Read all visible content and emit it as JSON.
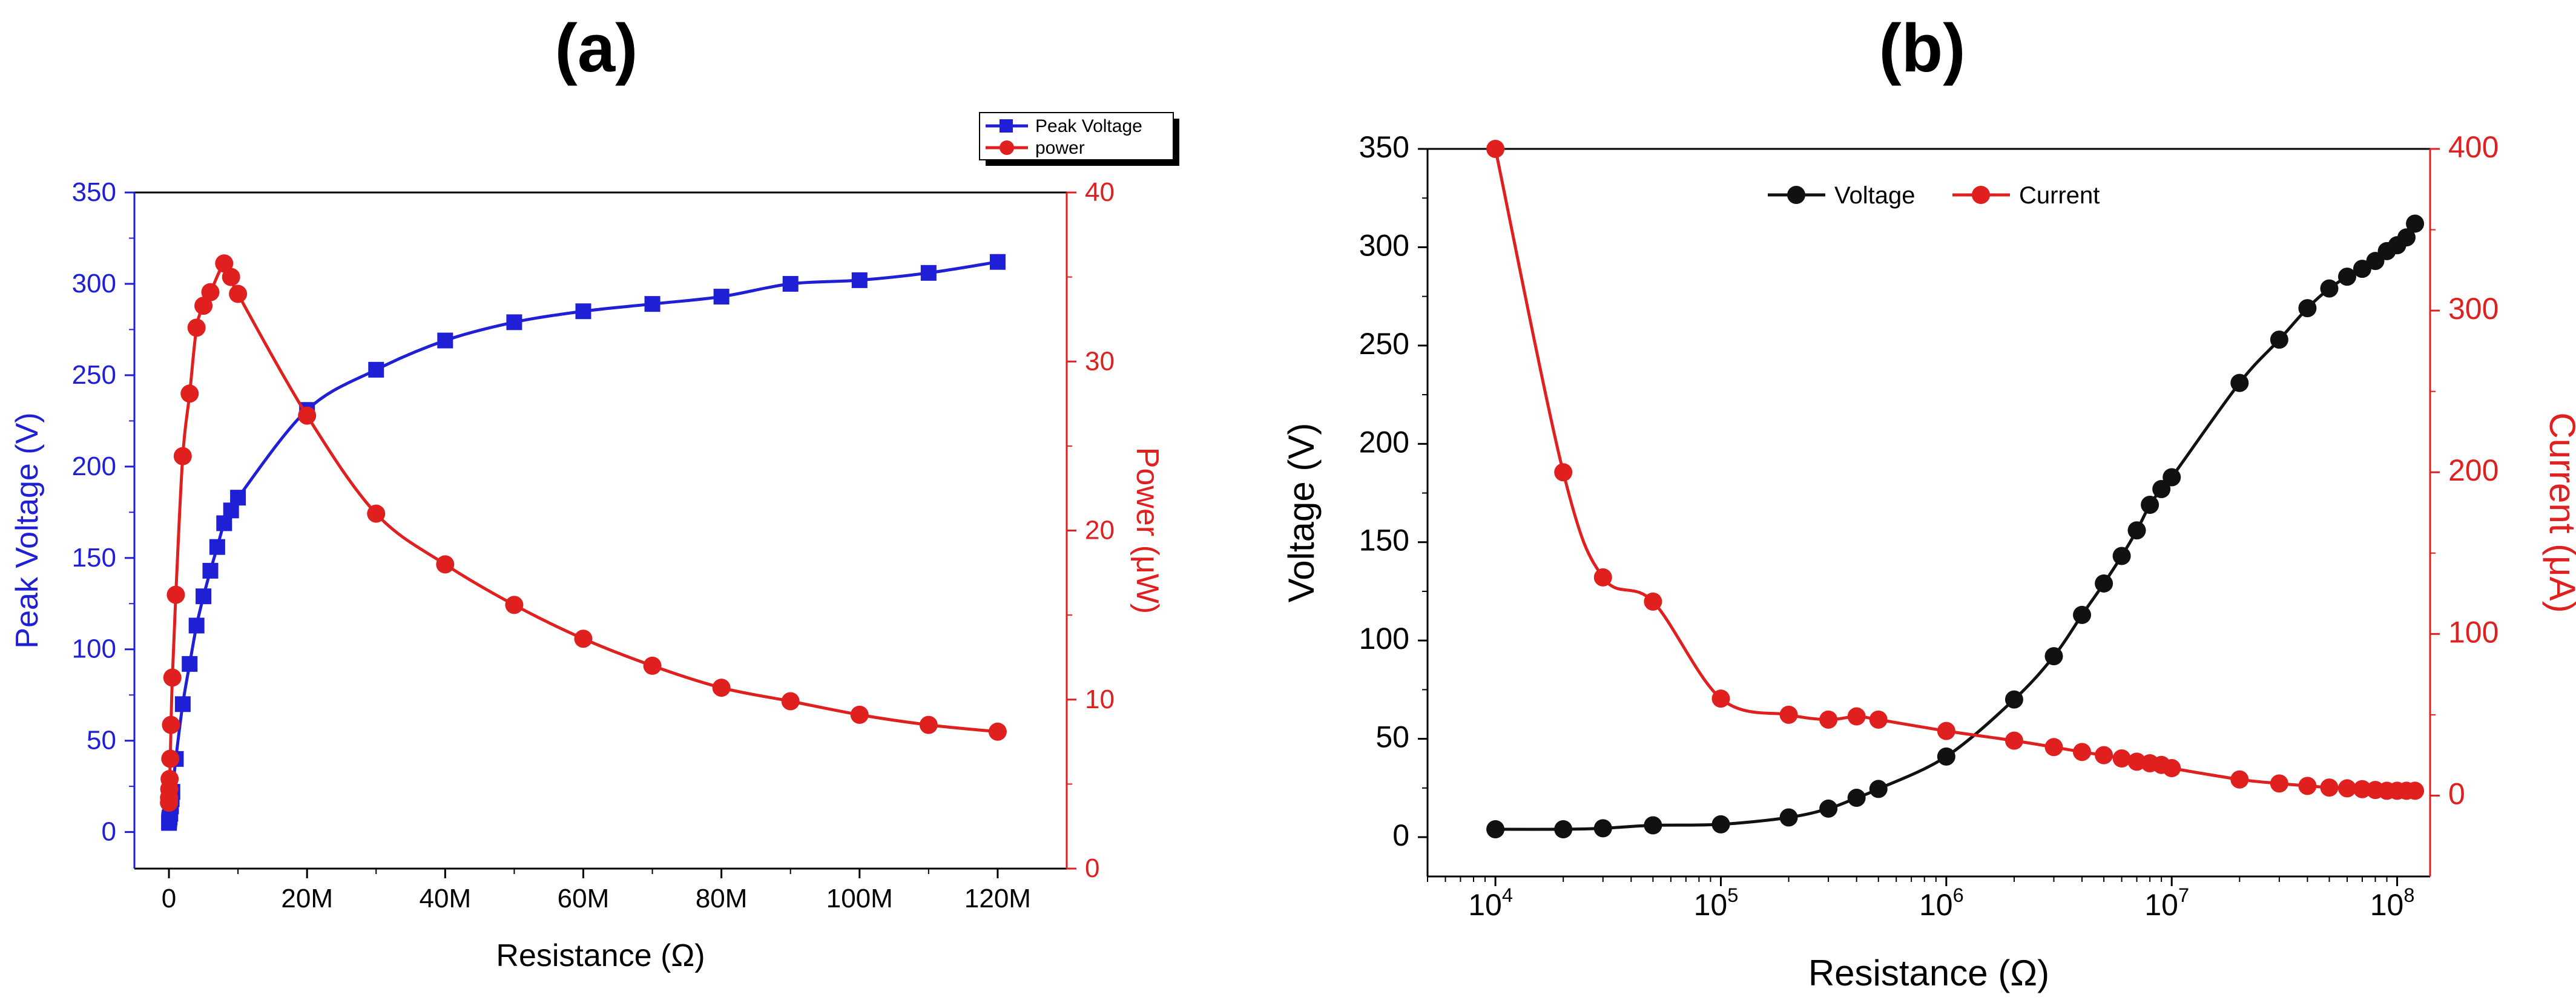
{
  "chart_data": [
    {
      "panel_label": "(a)",
      "type": "line",
      "xlabel": "Resistance (Ω)",
      "ylabel": "Peak Voltage (V)",
      "y2label": "Power (μW)",
      "xlim": [
        -5000000,
        130000000
      ],
      "ylim": [
        -20,
        350
      ],
      "y2lim": [
        0,
        40
      ],
      "x_ticks": [
        0,
        20000000,
        40000000,
        60000000,
        80000000,
        100000000,
        120000000
      ],
      "x_tick_labels": [
        "0",
        "20M",
        "40M",
        "60M",
        "80M",
        "100M",
        "120M"
      ],
      "y_ticks": [
        0,
        50,
        100,
        150,
        200,
        250,
        300,
        350
      ],
      "y_tick_labels": [
        "0",
        "50",
        "100",
        "150",
        "200",
        "250",
        "300",
        "350"
      ],
      "y2_ticks": [
        0,
        10,
        20,
        30,
        40
      ],
      "y2_tick_labels": [
        "0",
        "10",
        "20",
        "30",
        "40"
      ],
      "legend_position": "top-right",
      "series": [
        {
          "name": "Peak Voltage",
          "axis": "left",
          "color": "#1f1fd6",
          "marker": "square",
          "x": [
            10000,
            20000,
            50000,
            100000,
            200000,
            300000,
            400000,
            500000,
            1000000,
            2000000,
            3000000,
            4000000,
            5000000,
            6000000,
            7000000,
            8000000,
            9000000,
            10000000,
            20000000,
            30000000,
            40000000,
            50000000,
            60000000,
            70000000,
            80000000,
            90000000,
            100000000,
            110000000,
            120000000
          ],
          "values": [
            5,
            6,
            7,
            8,
            10,
            14,
            18,
            22,
            40,
            70,
            92,
            113,
            129,
            143,
            156,
            169,
            176,
            183,
            231,
            253,
            269,
            279,
            285,
            289,
            293,
            300,
            302,
            306,
            312
          ]
        },
        {
          "name": "power",
          "axis": "right",
          "color": "#e01f1f",
          "marker": "circle",
          "x": [
            10000,
            20000,
            50000,
            100000,
            200000,
            300000,
            500000,
            1000000,
            2000000,
            3000000,
            4000000,
            5000000,
            6000000,
            8000000,
            9000000,
            10000000,
            20000000,
            30000000,
            40000000,
            50000000,
            60000000,
            70000000,
            80000000,
            90000000,
            100000000,
            110000000,
            120000000
          ],
          "values": [
            3.9,
            4.2,
            4.7,
            5.3,
            6.5,
            8.5,
            11.3,
            16.2,
            24.4,
            28.1,
            32.0,
            33.3,
            34.1,
            35.8,
            35.0,
            34.0,
            26.8,
            21.0,
            18.0,
            15.6,
            13.6,
            12.0,
            10.7,
            9.9,
            9.1,
            8.5,
            8.1
          ]
        }
      ]
    },
    {
      "panel_label": "(b)",
      "type": "line",
      "x_scale": "log",
      "xlabel": "Resistance (Ω)",
      "ylabel": "Voltage (V)",
      "y2label": "Current (μA)",
      "xlim": [
        5000,
        140000000
      ],
      "ylim": [
        -20,
        350
      ],
      "y2lim": [
        -50,
        400
      ],
      "x_ticks": [
        10000,
        100000,
        1000000,
        10000000,
        100000000
      ],
      "x_tick_base": "10",
      "x_tick_exponents": [
        "4",
        "5",
        "6",
        "7",
        "8"
      ],
      "y_ticks": [
        0,
        50,
        100,
        150,
        200,
        250,
        300,
        350
      ],
      "y_tick_labels": [
        "0",
        "50",
        "100",
        "150",
        "200",
        "250",
        "300",
        "350"
      ],
      "y2_ticks": [
        0,
        100,
        200,
        300,
        400
      ],
      "y2_tick_labels": [
        "0",
        "100",
        "200",
        "300",
        "400"
      ],
      "legend_position": "top-center",
      "series": [
        {
          "name": "Voltage",
          "axis": "left",
          "color": "#111111",
          "marker": "circle",
          "x": [
            10000,
            20000,
            30000,
            50000,
            100000,
            200000,
            300000,
            400000,
            500000,
            1000000,
            2000000,
            3000000,
            4000000,
            5000000,
            6000000,
            7000000,
            8000000,
            9000000,
            10000000,
            20000000,
            30000000,
            40000000,
            50000000,
            60000000,
            70000000,
            80000000,
            90000000,
            100000000,
            110000000,
            120000000
          ],
          "values": [
            4,
            4,
            4.5,
            6,
            6.5,
            10,
            14.5,
            20,
            24.5,
            41,
            70,
            92,
            113,
            129,
            143,
            156,
            169,
            177,
            183,
            231,
            253,
            269,
            279,
            285,
            289,
            293,
            298,
            301,
            305,
            312
          ]
        },
        {
          "name": "Current",
          "axis": "right",
          "color": "#e01f1f",
          "marker": "circle",
          "x": [
            10000,
            20000,
            30000,
            50000,
            100000,
            200000,
            300000,
            400000,
            500000,
            1000000,
            2000000,
            3000000,
            4000000,
            5000000,
            6000000,
            7000000,
            8000000,
            9000000,
            10000000,
            20000000,
            30000000,
            40000000,
            50000000,
            60000000,
            70000000,
            80000000,
            90000000,
            100000000,
            110000000,
            120000000
          ],
          "values": [
            400,
            200,
            135,
            120,
            60,
            50,
            47,
            49,
            47,
            40,
            34,
            30,
            27,
            25,
            23,
            21,
            20,
            19,
            17,
            10,
            7.5,
            6,
            5,
            4.5,
            4,
            3.5,
            3,
            3,
            3,
            3
          ]
        }
      ]
    }
  ]
}
